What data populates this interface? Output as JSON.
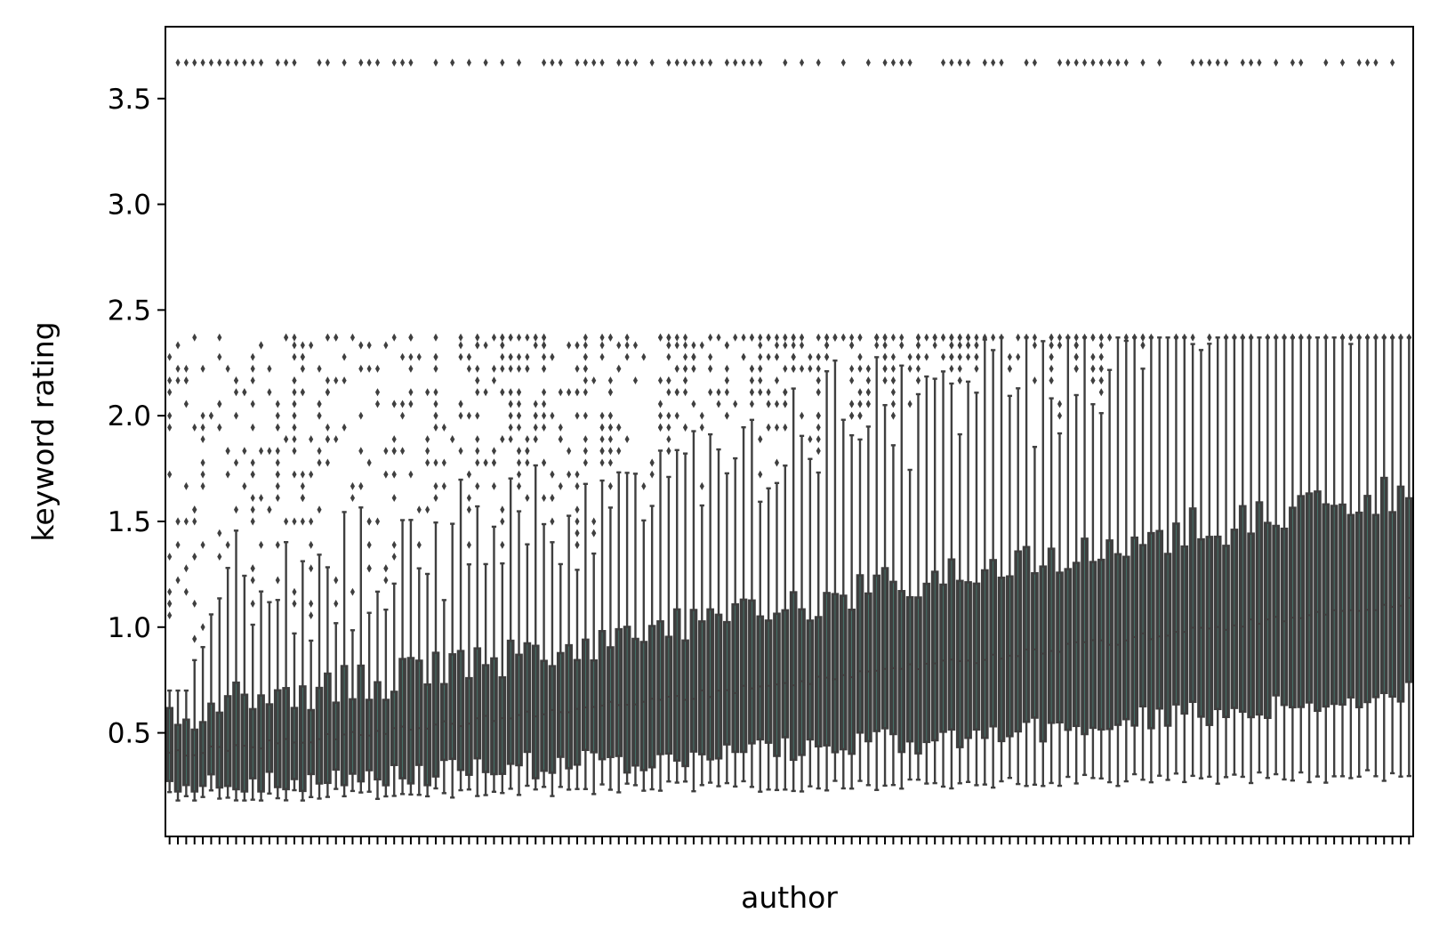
{
  "chart_data": {
    "type": "box",
    "title": "",
    "xlabel": "author",
    "ylabel": "keyword rating",
    "ylim": [
      0.01,
      3.84
    ],
    "yticks": [
      0.5,
      1.0,
      1.5,
      2.0,
      2.5,
      3.0,
      3.5
    ],
    "ytick_labels": [
      "0.5",
      "1.0",
      "1.5",
      "2.0",
      "2.5",
      "3.0",
      "3.5"
    ],
    "xtick_labels_shown": false,
    "num_categories": 150,
    "grid": false,
    "legend": "none",
    "box_colors": {
      "edge": "#3f3f3f",
      "fill": "#3f3f3f",
      "median": "#3f3f3f",
      "category_tint": "#4a9a8a"
    },
    "outlier_marker": "diamond",
    "outlier_level_max": 3.67,
    "summary_trend": {
      "first_category": {
        "whisker_low": 0.2,
        "q1": 0.3,
        "median": 0.4,
        "q3": 0.5,
        "whisker_high": 0.7
      },
      "last_category": {
        "whisker_low": 0.32,
        "q1": 0.7,
        "median": 1.12,
        "q3": 1.65,
        "whisker_high": 2.0
      },
      "whisker_high_range": [
        0.6,
        2.37
      ],
      "whisker_low_range": [
        0.18,
        0.36
      ]
    }
  }
}
